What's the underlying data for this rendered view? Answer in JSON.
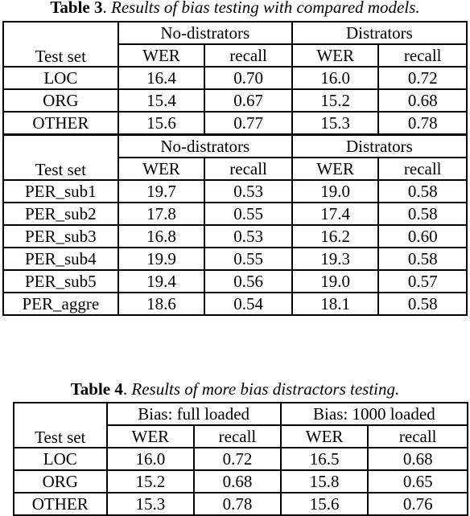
{
  "table3": {
    "caption_label": "Table 3",
    "caption_sep": ". ",
    "caption_text": "Results of bias testing with compared models.",
    "blocks": [
      {
        "test_set_label": "Test set",
        "group1": "No-distrators",
        "group2": "Distrators",
        "sub": [
          "WER",
          "recall",
          "WER",
          "recall"
        ],
        "rows": [
          [
            "LOC",
            "16.4",
            "0.70",
            "16.0",
            "0.72"
          ],
          [
            "ORG",
            "15.4",
            "0.67",
            "15.2",
            "0.68"
          ],
          [
            "OTHER",
            "15.6",
            "0.77",
            "15.3",
            "0.78"
          ]
        ]
      },
      {
        "test_set_label": "Test set",
        "group1": "No-distrators",
        "group2": "Distrators",
        "sub": [
          "WER",
          "recall",
          "WER",
          "recall"
        ],
        "rows": [
          [
            "PER_sub1",
            "19.7",
            "0.53",
            "19.0",
            "0.58"
          ],
          [
            "PER_sub2",
            "17.8",
            "0.55",
            "17.4",
            "0.58"
          ],
          [
            "PER_sub3",
            "16.8",
            "0.53",
            "16.2",
            "0.60"
          ],
          [
            "PER_sub4",
            "19.9",
            "0.55",
            "19.3",
            "0.58"
          ],
          [
            "PER_sub5",
            "19.4",
            "0.56",
            "19.0",
            "0.57"
          ],
          [
            "PER_aggre",
            "18.6",
            "0.54",
            "18.1",
            "0.58"
          ]
        ]
      }
    ]
  },
  "table4": {
    "caption_label": "Table 4",
    "caption_sep": ". ",
    "caption_text": "Results of more bias distractors testing.",
    "test_set_label": "Test set",
    "group1": "Bias: full loaded",
    "group2": "Bias: 1000 loaded",
    "sub": [
      "WER",
      "recall",
      "WER",
      "recall"
    ],
    "rows": [
      [
        "LOC",
        "16.0",
        "0.72",
        "16.5",
        "0.68"
      ],
      [
        "ORG",
        "15.2",
        "0.68",
        "15.8",
        "0.65"
      ],
      [
        "OTHER",
        "15.3",
        "0.78",
        "15.6",
        "0.76"
      ]
    ]
  }
}
